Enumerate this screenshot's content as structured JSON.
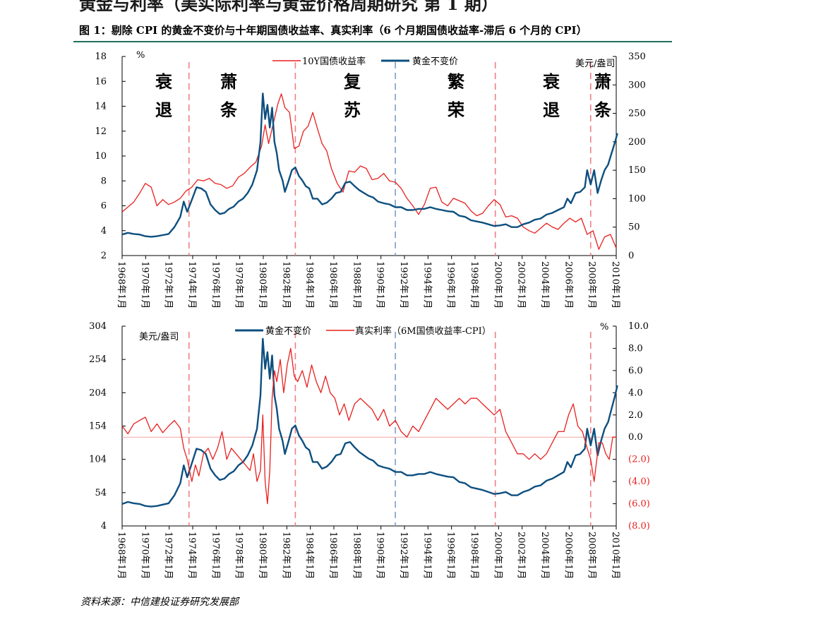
{
  "header": {
    "top_title": "黄金与利率（美实际利率与黄金价格周期研究 第 1 期）",
    "figure_title": "图 1：剔除 CPI 的黄金不变价与十年期国债收益率、真实利率（6 个月期国债收益率-滞后 6 个月的 CPI）"
  },
  "source": "资料来源：中信建投证券研究发展部",
  "colors": {
    "red": "#e8201e",
    "blue": "#0d4f7f",
    "dash_red": "#f07f85",
    "dash_blue": "#7e9dc8"
  },
  "phases": [
    {
      "line1": "衰",
      "line2": "退"
    },
    {
      "line1": "萧",
      "line2": "条"
    },
    {
      "line1": "复",
      "line2": "苏"
    },
    {
      "line1": "繁",
      "line2": "荣"
    },
    {
      "line1": "衰",
      "line2": "退"
    },
    {
      "line1": "萧",
      "line2": "条"
    }
  ],
  "chart_data": [
    {
      "type": "line",
      "left_unit": "%",
      "right_unit": "美元/盎司",
      "y_left_ticks": [
        "18",
        "16",
        "14",
        "12",
        "10",
        "8",
        "6",
        "4",
        "2"
      ],
      "y_right_ticks": [
        "350",
        "300",
        "250",
        "200",
        "150",
        "100",
        "50",
        "0"
      ],
      "ylim_left": [
        2,
        18
      ],
      "ylim_right": [
        0,
        350
      ],
      "x_ticks": [
        "1968年1月",
        "1970年1月",
        "1972年1月",
        "1974年1月",
        "1976年1月",
        "1978年1月",
        "1980年1月",
        "1982年1月",
        "1984年1月",
        "1986年1月",
        "1988年1月",
        "1990年1月",
        "1992年1月",
        "1994年1月",
        "1996年1月",
        "1998年1月",
        "2000年1月",
        "2002年1月",
        "2004年1月",
        "2006年1月",
        "2008年1月",
        "2010年1月"
      ],
      "x_range": [
        1968.0,
        2010.5
      ],
      "vlines": [
        {
          "x": 1973.75,
          "style": "red-dash"
        },
        {
          "x": 1982.9,
          "style": "red-dash"
        },
        {
          "x": 1991.5,
          "style": "blue-dash"
        },
        {
          "x": 2000.1,
          "style": "red-dash"
        },
        {
          "x": 2008.3,
          "style": "red-dash"
        }
      ],
      "legend": {
        "placement": "top-center"
      },
      "series": [
        {
          "name": "10Y国债收益率",
          "axis": "left",
          "color": "#e8201e",
          "x": [
            1968.0,
            1968.5,
            1969.0,
            1969.5,
            1970.0,
            1970.5,
            1971.0,
            1971.5,
            1972.0,
            1972.5,
            1973.0,
            1973.5,
            1974.0,
            1974.5,
            1975.0,
            1975.5,
            1976.0,
            1976.5,
            1977.0,
            1977.5,
            1978.0,
            1978.5,
            1979.0,
            1979.5,
            1980.0,
            1980.3,
            1980.6,
            1981.0,
            1981.4,
            1981.7,
            1982.0,
            1982.4,
            1982.8,
            1983.2,
            1983.6,
            1984.0,
            1984.4,
            1984.8,
            1985.2,
            1985.6,
            1986.0,
            1986.5,
            1987.0,
            1987.5,
            1988.0,
            1988.5,
            1989.0,
            1989.5,
            1990.0,
            1990.5,
            1991.0,
            1991.5,
            1992.0,
            1992.5,
            1993.0,
            1993.5,
            1994.0,
            1994.5,
            1995.0,
            1995.5,
            1996.0,
            1996.5,
            1997.0,
            1997.5,
            1998.0,
            1998.5,
            1999.0,
            1999.5,
            2000.0,
            2000.5,
            2001.0,
            2001.5,
            2002.0,
            2002.5,
            2003.0,
            2003.5,
            2004.0,
            2004.5,
            2005.0,
            2005.5,
            2006.0,
            2006.5,
            2007.0,
            2007.5,
            2008.0,
            2008.5,
            2009.0,
            2009.5,
            2010.0,
            2010.5
          ],
          "y": [
            5.5,
            5.9,
            6.3,
            7.0,
            7.8,
            7.5,
            6.0,
            6.5,
            6.1,
            6.3,
            6.6,
            7.2,
            7.5,
            8.1,
            8.0,
            8.2,
            7.8,
            7.7,
            7.4,
            7.6,
            8.3,
            8.6,
            9.1,
            9.5,
            10.8,
            12.5,
            11.0,
            12.6,
            14.2,
            15.0,
            13.9,
            13.5,
            10.6,
            10.8,
            12.0,
            12.4,
            13.5,
            12.2,
            11.0,
            10.4,
            9.0,
            7.8,
            7.1,
            8.8,
            8.7,
            9.2,
            9.0,
            8.1,
            8.2,
            8.6,
            8.0,
            7.9,
            7.4,
            6.6,
            6.0,
            5.3,
            6.1,
            7.4,
            7.5,
            6.3,
            6.0,
            6.6,
            6.4,
            6.2,
            5.6,
            5.2,
            5.4,
            6.0,
            6.5,
            6.1,
            5.1,
            5.2,
            5.0,
            4.3,
            4.0,
            3.8,
            4.2,
            4.6,
            4.3,
            4.1,
            4.6,
            5.0,
            4.7,
            5.0,
            3.7,
            4.0,
            2.5,
            3.5,
            3.7,
            2.6
          ]
        },
        {
          "name": "黄金不变价",
          "axis": "right",
          "color": "#0d4f7f",
          "x": [
            1968.0,
            1968.5,
            1969.0,
            1969.5,
            1970.0,
            1970.5,
            1971.0,
            1971.5,
            1972.0,
            1972.5,
            1973.0,
            1973.3,
            1973.6,
            1974.0,
            1974.4,
            1974.8,
            1975.2,
            1975.6,
            1976.0,
            1976.4,
            1976.8,
            1977.2,
            1977.6,
            1978.0,
            1978.4,
            1978.8,
            1979.2,
            1979.6,
            1979.9,
            1980.1,
            1980.3,
            1980.5,
            1980.7,
            1980.9,
            1981.1,
            1981.3,
            1981.5,
            1981.8,
            1982.0,
            1982.3,
            1982.6,
            1982.9,
            1983.2,
            1983.5,
            1983.8,
            1984.1,
            1984.4,
            1984.8,
            1985.2,
            1985.6,
            1986.0,
            1986.4,
            1986.8,
            1987.2,
            1987.6,
            1988.0,
            1988.4,
            1988.8,
            1989.2,
            1989.6,
            1990.0,
            1990.5,
            1991.0,
            1991.5,
            1992.0,
            1992.5,
            1993.0,
            1993.5,
            1994.0,
            1994.5,
            1995.0,
            1995.5,
            1996.0,
            1996.5,
            1997.0,
            1997.5,
            1998.0,
            1998.5,
            1999.0,
            1999.5,
            2000.0,
            2000.5,
            2001.0,
            2001.5,
            2002.0,
            2002.5,
            2003.0,
            2003.5,
            2004.0,
            2004.5,
            2005.0,
            2005.5,
            2006.0,
            2006.3,
            2006.6,
            2007.0,
            2007.4,
            2007.8,
            2008.0,
            2008.3,
            2008.6,
            2008.9,
            2009.2,
            2009.5,
            2009.8,
            2010.1,
            2010.4,
            2010.6
          ],
          "y": [
            37,
            40,
            38,
            37,
            34,
            33,
            34,
            36,
            38,
            50,
            68,
            95,
            77,
            98,
            120,
            118,
            112,
            90,
            80,
            73,
            75,
            82,
            86,
            95,
            100,
            110,
            125,
            150,
            200,
            285,
            240,
            265,
            225,
            260,
            200,
            180,
            150,
            132,
            112,
            130,
            150,
            155,
            140,
            132,
            122,
            118,
            100,
            100,
            90,
            93,
            100,
            110,
            112,
            128,
            130,
            122,
            115,
            110,
            105,
            102,
            95,
            92,
            90,
            85,
            85,
            80,
            80,
            82,
            82,
            85,
            82,
            80,
            78,
            77,
            70,
            68,
            62,
            60,
            58,
            55,
            52,
            53,
            55,
            50,
            50,
            55,
            58,
            63,
            65,
            72,
            75,
            80,
            85,
            100,
            92,
            110,
            112,
            120,
            150,
            125,
            150,
            110,
            132,
            150,
            160,
            180,
            200,
            215
          ]
        }
      ]
    },
    {
      "type": "line",
      "left_unit": "美元/盎司",
      "right_unit": "%",
      "y_left_ticks": [
        "304",
        "254",
        "204",
        "154",
        "104",
        "54",
        "4"
      ],
      "y_right_ticks": [
        "10.0",
        "8.0",
        "6.0",
        "4.0",
        "2.0",
        "0.0",
        "(2.0)",
        "(4.0)",
        "(6.0)",
        "(8.0)"
      ],
      "ylim_left": [
        4,
        304
      ],
      "ylim_right": [
        -8,
        10
      ],
      "x_ticks": [
        "1968年1月",
        "1970年1月",
        "1972年1月",
        "1974年1月",
        "1976年1月",
        "1978年1月",
        "1980年1月",
        "1982年1月",
        "1984年1月",
        "1986年1月",
        "1988年1月",
        "1990年1月",
        "1992年1月",
        "1994年1月",
        "1996年1月",
        "1998年1月",
        "2000年1月",
        "2002年1月",
        "2004年1月",
        "2006年1月",
        "2008年1月",
        "2010年1月"
      ],
      "x_range": [
        1968.0,
        2010.5
      ],
      "vlines": [
        {
          "x": 1973.75,
          "style": "red-dash"
        },
        {
          "x": 1982.9,
          "style": "red-dash"
        },
        {
          "x": 1991.5,
          "style": "blue-dash"
        },
        {
          "x": 2000.1,
          "style": "red-dash"
        },
        {
          "x": 2008.3,
          "style": "red-dash"
        }
      ],
      "zero_line": 0.0,
      "legend": {
        "placement": "top-center"
      },
      "series": [
        {
          "name": "黄金不变价",
          "axis": "left",
          "color": "#0d4f7f",
          "x": [
            1968.0,
            1968.5,
            1969.0,
            1969.5,
            1970.0,
            1970.5,
            1971.0,
            1971.5,
            1972.0,
            1972.5,
            1973.0,
            1973.3,
            1973.6,
            1974.0,
            1974.4,
            1974.8,
            1975.2,
            1975.6,
            1976.0,
            1976.4,
            1976.8,
            1977.2,
            1977.6,
            1978.0,
            1978.4,
            1978.8,
            1979.2,
            1979.6,
            1979.9,
            1980.1,
            1980.3,
            1980.5,
            1980.7,
            1980.9,
            1981.1,
            1981.3,
            1981.5,
            1981.8,
            1982.0,
            1982.3,
            1982.6,
            1982.9,
            1983.2,
            1983.5,
            1983.8,
            1984.1,
            1984.4,
            1984.8,
            1985.2,
            1985.6,
            1986.0,
            1986.4,
            1986.8,
            1987.2,
            1987.6,
            1988.0,
            1988.4,
            1988.8,
            1989.2,
            1989.6,
            1990.0,
            1990.5,
            1991.0,
            1991.5,
            1992.0,
            1992.5,
            1993.0,
            1993.5,
            1994.0,
            1994.5,
            1995.0,
            1995.5,
            1996.0,
            1996.5,
            1997.0,
            1997.5,
            1998.0,
            1998.5,
            1999.0,
            1999.5,
            2000.0,
            2000.5,
            2001.0,
            2001.5,
            2002.0,
            2002.5,
            2003.0,
            2003.5,
            2004.0,
            2004.5,
            2005.0,
            2005.5,
            2006.0,
            2006.3,
            2006.6,
            2007.0,
            2007.4,
            2007.8,
            2008.0,
            2008.3,
            2008.6,
            2008.9,
            2009.2,
            2009.5,
            2009.8,
            2010.1,
            2010.4,
            2010.6
          ],
          "y": [
            37,
            40,
            38,
            37,
            34,
            33,
            34,
            36,
            38,
            50,
            68,
            95,
            77,
            98,
            120,
            118,
            112,
            90,
            80,
            73,
            75,
            82,
            86,
            95,
            100,
            110,
            125,
            150,
            200,
            285,
            240,
            265,
            225,
            260,
            200,
            180,
            150,
            132,
            112,
            130,
            150,
            155,
            140,
            132,
            122,
            118,
            100,
            100,
            90,
            93,
            100,
            110,
            112,
            128,
            130,
            122,
            115,
            110,
            105,
            102,
            95,
            92,
            90,
            85,
            85,
            80,
            80,
            82,
            82,
            85,
            82,
            80,
            78,
            77,
            70,
            68,
            62,
            60,
            58,
            55,
            52,
            53,
            55,
            50,
            50,
            55,
            58,
            63,
            65,
            72,
            75,
            80,
            85,
            100,
            92,
            110,
            112,
            120,
            150,
            125,
            150,
            110,
            132,
            150,
            160,
            180,
            200,
            215
          ]
        },
        {
          "name": "真实利率（6M国债收益率-CPI）",
          "axis": "right",
          "color": "#e8201e",
          "x": [
            1968.0,
            1968.5,
            1969.0,
            1969.5,
            1970.0,
            1970.5,
            1971.0,
            1971.5,
            1972.0,
            1972.5,
            1973.0,
            1973.3,
            1973.6,
            1974.0,
            1974.3,
            1974.6,
            1975.0,
            1975.4,
            1975.8,
            1976.2,
            1976.6,
            1977.0,
            1977.4,
            1977.8,
            1978.2,
            1978.6,
            1979.0,
            1979.3,
            1979.6,
            1979.9,
            1980.1,
            1980.3,
            1980.5,
            1980.7,
            1980.9,
            1981.1,
            1981.3,
            1981.6,
            1981.9,
            1982.2,
            1982.5,
            1982.8,
            1983.1,
            1983.5,
            1983.9,
            1984.3,
            1984.7,
            1985.1,
            1985.5,
            1985.9,
            1986.3,
            1986.7,
            1987.1,
            1987.5,
            1988.0,
            1988.5,
            1989.0,
            1989.5,
            1990.0,
            1990.5,
            1991.0,
            1991.5,
            1992.0,
            1992.5,
            1993.0,
            1993.5,
            1994.0,
            1994.5,
            1995.0,
            1995.5,
            1996.0,
            1996.5,
            1997.0,
            1997.5,
            1998.0,
            1998.5,
            1999.0,
            1999.5,
            2000.0,
            2000.5,
            2001.0,
            2001.5,
            2002.0,
            2002.5,
            2003.0,
            2003.5,
            2004.0,
            2004.5,
            2005.0,
            2005.5,
            2006.0,
            2006.4,
            2006.8,
            2007.2,
            2007.6,
            2008.0,
            2008.3,
            2008.6,
            2009.0,
            2009.3,
            2009.6,
            2009.9,
            2010.2,
            2010.5
          ],
          "y": [
            1.0,
            0.3,
            1.2,
            1.5,
            1.8,
            0.5,
            1.2,
            0.4,
            1.0,
            1.5,
            0.8,
            -1.0,
            -2.0,
            -4.0,
            -2.5,
            -3.5,
            -1.5,
            -1.0,
            -2.0,
            -1.0,
            0.5,
            -2.0,
            -1.0,
            -1.5,
            -2.0,
            -2.5,
            -3.0,
            -1.5,
            -4.0,
            -3.0,
            2.0,
            -4.0,
            -6.0,
            -3.0,
            3.5,
            6.0,
            5.0,
            7.0,
            4.0,
            6.5,
            8.0,
            5.5,
            5.0,
            6.0,
            4.5,
            6.5,
            5.0,
            4.0,
            5.5,
            4.0,
            3.5,
            2.0,
            3.0,
            1.5,
            3.0,
            3.5,
            3.0,
            2.5,
            1.5,
            2.5,
            1.0,
            1.5,
            0.5,
            0.0,
            1.0,
            0.5,
            1.5,
            2.5,
            3.5,
            3.0,
            2.5,
            3.0,
            3.5,
            3.0,
            3.5,
            3.5,
            3.0,
            2.5,
            2.0,
            2.5,
            0.5,
            -0.5,
            -1.5,
            -1.5,
            -2.0,
            -1.5,
            -2.0,
            -1.5,
            -0.5,
            0.5,
            0.5,
            2.0,
            3.0,
            1.0,
            0.5,
            -1.0,
            -2.0,
            -4.0,
            -0.5,
            -0.5,
            -1.5,
            -2.0,
            0.0,
            0.0
          ]
        }
      ]
    }
  ]
}
